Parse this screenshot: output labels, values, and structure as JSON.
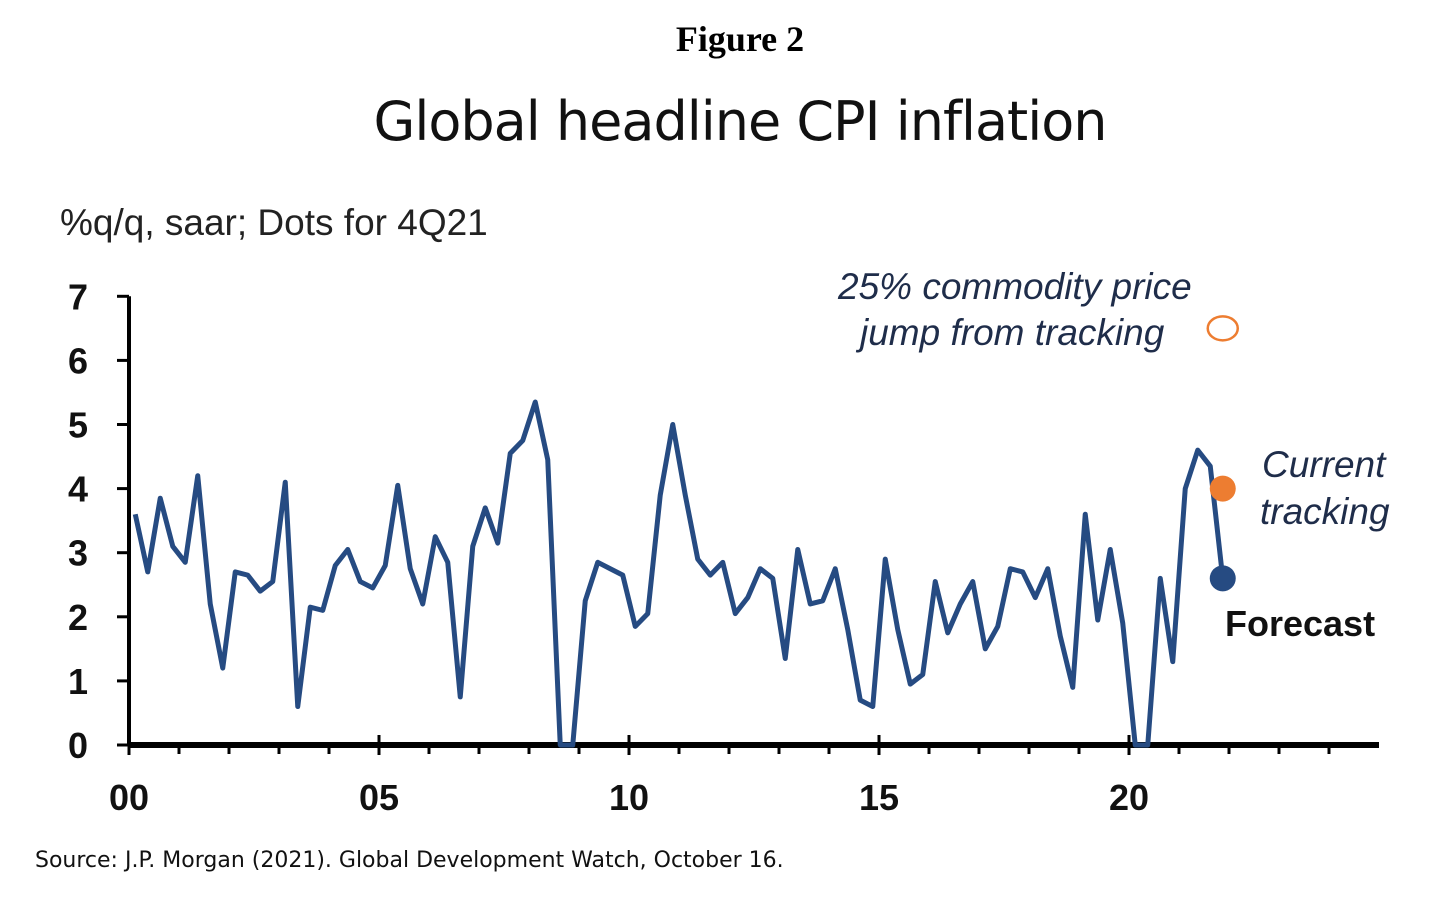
{
  "figure_label": "Figure 2",
  "source": "Source: J.P. Morgan (2021).  Global Development Watch, October 16.",
  "chart_data": {
    "type": "line",
    "title": "Global headline CPI inflation",
    "ylabel": "%q/q, saar; Dots for 4Q21",
    "xlabel": "",
    "ylim": [
      0,
      7
    ],
    "xlim": [
      2000,
      2025
    ],
    "yticks": [
      "0",
      "1",
      "2",
      "3",
      "4",
      "5",
      "6",
      "7"
    ],
    "xticks": [
      {
        "year": 2000,
        "label": "00"
      },
      {
        "year": 2005,
        "label": "05"
      },
      {
        "year": 2010,
        "label": "10"
      },
      {
        "year": 2015,
        "label": "15"
      },
      {
        "year": 2020,
        "label": "20"
      }
    ],
    "grid": false,
    "x_start": "2000Q1",
    "frequency": "quarterly",
    "line_color": "#264b82",
    "series": [
      {
        "values": [
          3.6,
          2.7,
          3.85,
          3.1,
          2.85,
          4.2,
          2.2,
          1.2,
          2.7,
          2.65,
          2.4,
          2.55,
          4.1,
          0.6,
          2.15,
          2.1,
          2.8,
          3.05,
          2.55,
          2.45,
          2.8,
          4.05,
          2.75,
          2.2,
          3.25,
          2.85,
          0.75,
          3.1,
          3.7,
          3.15,
          4.55,
          4.75,
          5.35,
          4.45,
          0,
          0,
          2.25,
          2.85,
          2.75,
          2.65,
          1.85,
          2.05,
          3.9,
          5.0,
          3.9,
          2.9,
          2.65,
          2.85,
          2.05,
          2.3,
          2.75,
          2.6,
          1.35,
          3.05,
          2.2,
          2.25,
          2.75,
          1.8,
          0.7,
          0.6,
          2.9,
          1.8,
          0.95,
          1.1,
          2.55,
          1.75,
          2.2,
          2.55,
          1.5,
          1.85,
          2.75,
          2.7,
          2.3,
          2.75,
          1.7,
          0.9,
          3.6,
          1.95,
          3.05,
          1.9,
          0,
          0,
          2.6,
          1.3,
          4.0,
          4.6,
          4.35,
          2.6
        ]
      }
    ],
    "dots": [
      {
        "quarter": "4Q21",
        "value": 2.6,
        "label": "Forecast",
        "color": "#264b82",
        "style": "filled"
      },
      {
        "quarter": "4Q21",
        "value": 4.0,
        "label": "Current tracking",
        "color": "#ed7d31",
        "style": "filled"
      },
      {
        "quarter": "4Q21",
        "value": 6.5,
        "label": "25% commodity price jump from tracking",
        "color": "#ed7d31",
        "style": "open"
      }
    ],
    "annotations": {
      "commodity_line1": "25% commodity price",
      "commodity_line2": "jump from tracking",
      "current_line1": "Current",
      "current_line2": "tracking",
      "forecast": "Forecast"
    }
  }
}
